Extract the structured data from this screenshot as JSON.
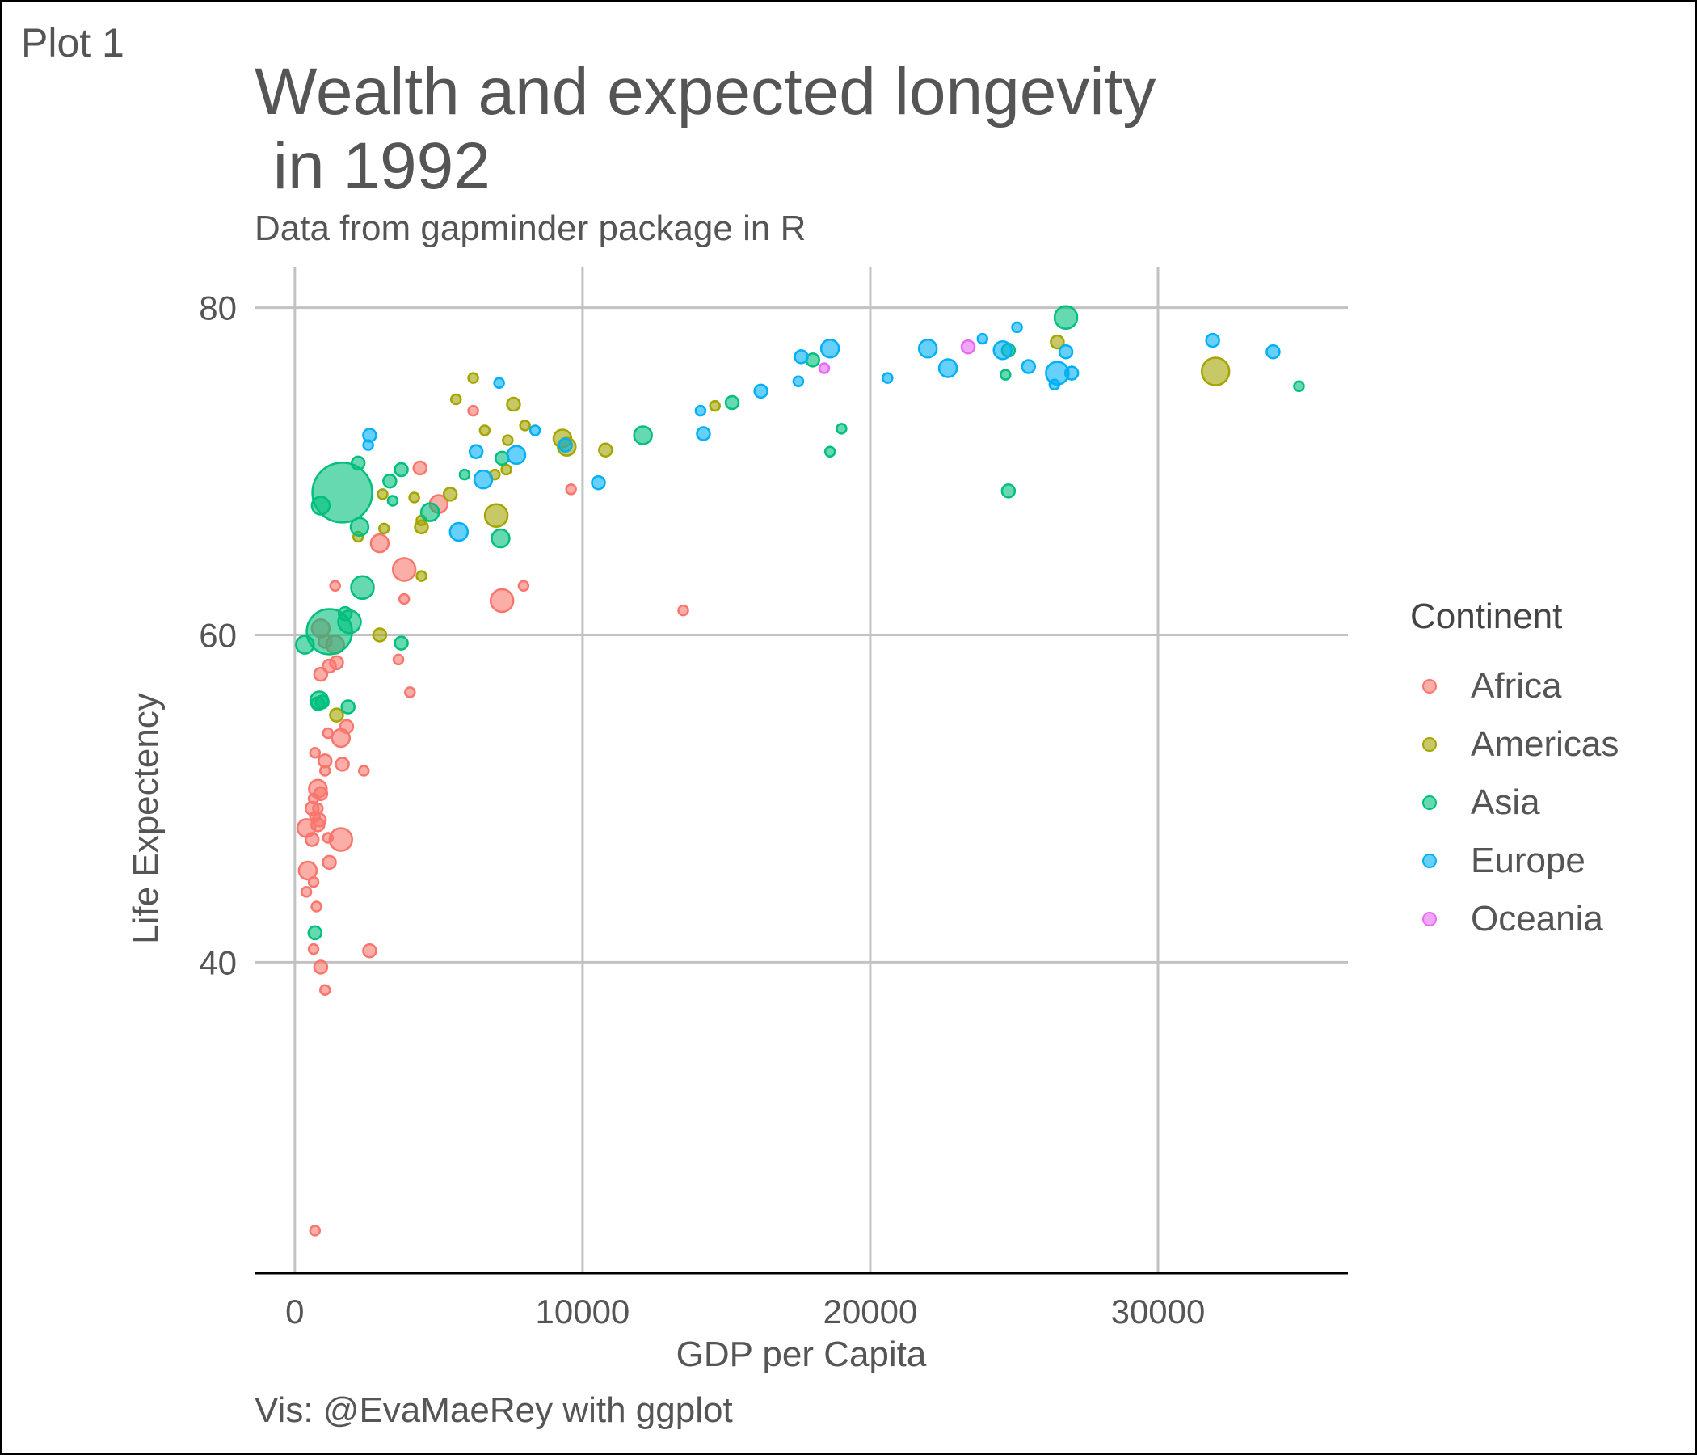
{
  "tag": "Plot 1",
  "title": "Wealth and expected longevity\n in 1992",
  "subtitle": "Data from gapminder package in R",
  "caption": "Vis: @EvaMaeRey with ggplot",
  "legend": {
    "title": "Continent",
    "items": [
      {
        "label": "Africa",
        "color": "#F8766D"
      },
      {
        "label": "Americas",
        "color": "#A3A500"
      },
      {
        "label": "Asia",
        "color": "#00BF7D"
      },
      {
        "label": "Europe",
        "color": "#00B0F6"
      },
      {
        "label": "Oceania",
        "color": "#E76BF3"
      }
    ]
  },
  "chart_data": {
    "type": "scatter",
    "title": "Wealth and expected longevity\n in 1992",
    "subtitle": "Data from gapminder package in R",
    "xlabel": "GDP per Capita",
    "ylabel": "Life Expectency",
    "xlim": [
      -1400,
      36600
    ],
    "ylim": [
      21,
      82.5
    ],
    "x_ticks": [
      0,
      10000,
      20000,
      30000
    ],
    "x_tick_labels": [
      "0",
      "10000",
      "20000",
      "30000"
    ],
    "y_ticks": [
      40,
      60,
      80
    ],
    "y_tick_labels": [
      "40",
      "60",
      "80"
    ],
    "grid": true,
    "legend_position": "right",
    "size_encoding": "population",
    "series": [
      {
        "name": "Africa",
        "color": "#F8766D",
        "points": [
          [
            6200,
            73.7,
            1
          ],
          [
            4350,
            70.2,
            2
          ],
          [
            5000,
            68.0,
            3
          ],
          [
            2950,
            65.6,
            3
          ],
          [
            3800,
            64.0,
            4
          ],
          [
            3800,
            62.2,
            1
          ],
          [
            7200,
            62.1,
            4
          ],
          [
            7950,
            63.0,
            1
          ],
          [
            1400,
            63.0,
            1
          ],
          [
            13500,
            61.5,
            1
          ],
          [
            9600,
            68.9,
            1
          ],
          [
            900,
            60.4,
            3
          ],
          [
            1050,
            59.6,
            2
          ],
          [
            1400,
            59.4,
            3
          ],
          [
            1200,
            58.1,
            2
          ],
          [
            1450,
            58.3,
            2
          ],
          [
            900,
            57.6,
            2
          ],
          [
            3600,
            58.5,
            1
          ],
          [
            4000,
            56.5,
            1
          ],
          [
            1150,
            54.0,
            1
          ],
          [
            1600,
            53.7,
            3
          ],
          [
            1800,
            54.4,
            2
          ],
          [
            700,
            52.8,
            1
          ],
          [
            1050,
            52.3,
            2
          ],
          [
            1050,
            51.7,
            1
          ],
          [
            1650,
            52.1,
            2
          ],
          [
            2400,
            51.7,
            1
          ],
          [
            800,
            50.6,
            3
          ],
          [
            900,
            50.3,
            2
          ],
          [
            650,
            50.0,
            1
          ],
          [
            600,
            49.4,
            2
          ],
          [
            800,
            49.4,
            1
          ],
          [
            850,
            48.7,
            2
          ],
          [
            700,
            48.9,
            1
          ],
          [
            800,
            48.4,
            2
          ],
          [
            400,
            48.2,
            3
          ],
          [
            600,
            47.5,
            2
          ],
          [
            1150,
            47.6,
            1
          ],
          [
            1600,
            47.5,
            4
          ],
          [
            1200,
            46.1,
            2
          ],
          [
            450,
            45.6,
            3
          ],
          [
            650,
            44.9,
            1
          ],
          [
            400,
            44.3,
            1
          ],
          [
            750,
            43.4,
            1
          ],
          [
            650,
            40.8,
            1
          ],
          [
            900,
            39.7,
            2
          ],
          [
            1050,
            38.3,
            1
          ],
          [
            2600,
            40.7,
            2
          ],
          [
            700,
            23.6,
            1
          ]
        ]
      },
      {
        "name": "Americas",
        "color": "#A3A500",
        "points": [
          [
            6200,
            75.7,
            1
          ],
          [
            5600,
            74.4,
            1
          ],
          [
            7600,
            74.1,
            2
          ],
          [
            8000,
            72.8,
            1
          ],
          [
            6600,
            72.5,
            1
          ],
          [
            7400,
            71.9,
            1
          ],
          [
            9300,
            72.0,
            3
          ],
          [
            9450,
            71.5,
            3
          ],
          [
            10800,
            71.3,
            2
          ],
          [
            6950,
            69.8,
            1
          ],
          [
            7350,
            70.1,
            1
          ],
          [
            3050,
            68.6,
            1
          ],
          [
            4150,
            68.4,
            1
          ],
          [
            5400,
            68.6,
            2
          ],
          [
            7000,
            67.3,
            4
          ],
          [
            4400,
            67.0,
            1
          ],
          [
            4400,
            66.6,
            2
          ],
          [
            3100,
            66.5,
            1
          ],
          [
            2200,
            66.0,
            1
          ],
          [
            4400,
            63.6,
            1
          ],
          [
            2950,
            60.0,
            2
          ],
          [
            1450,
            55.1,
            2
          ],
          [
            14600,
            74.0,
            1
          ],
          [
            26500,
            77.9,
            2
          ],
          [
            32000,
            76.1,
            5
          ]
        ]
      },
      {
        "name": "Asia",
        "color": "#00BF7D",
        "points": [
          [
            1650,
            68.7,
            9
          ],
          [
            900,
            67.9,
            3
          ],
          [
            2200,
            70.5,
            2
          ],
          [
            3700,
            70.1,
            2
          ],
          [
            3300,
            69.4,
            2
          ],
          [
            3400,
            68.2,
            1
          ],
          [
            2250,
            66.6,
            3
          ],
          [
            4700,
            67.5,
            3
          ],
          [
            2350,
            62.9,
            4
          ],
          [
            1200,
            60.2,
            8
          ],
          [
            1900,
            60.8,
            4
          ],
          [
            1750,
            61.3,
            2
          ],
          [
            350,
            59.4,
            3
          ],
          [
            3700,
            59.5,
            2
          ],
          [
            850,
            56.0,
            3
          ],
          [
            800,
            55.8,
            2
          ],
          [
            950,
            55.9,
            2
          ],
          [
            1850,
            55.6,
            2
          ],
          [
            700,
            41.8,
            2
          ],
          [
            5900,
            69.8,
            1
          ],
          [
            7200,
            70.8,
            2
          ],
          [
            7150,
            65.9,
            3
          ],
          [
            12100,
            72.2,
            3
          ],
          [
            15200,
            74.2,
            2
          ],
          [
            18000,
            76.8,
            2
          ],
          [
            18600,
            71.2,
            1
          ],
          [
            19000,
            72.6,
            1
          ],
          [
            24700,
            75.9,
            1
          ],
          [
            24800,
            68.8,
            2
          ],
          [
            24800,
            77.4,
            2
          ],
          [
            26800,
            79.4,
            4
          ],
          [
            34900,
            75.2,
            1
          ]
        ]
      },
      {
        "name": "Europe",
        "color": "#00B0F6",
        "points": [
          [
            7100,
            75.4,
            1
          ],
          [
            2600,
            72.2,
            2
          ],
          [
            2550,
            71.6,
            1
          ],
          [
            8350,
            72.5,
            1
          ],
          [
            6300,
            71.2,
            2
          ],
          [
            7700,
            71.0,
            3
          ],
          [
            9400,
            71.6,
            2
          ],
          [
            6550,
            69.5,
            3
          ],
          [
            5700,
            66.3,
            3
          ],
          [
            10550,
            69.3,
            2
          ],
          [
            14200,
            72.3,
            2
          ],
          [
            14100,
            73.7,
            1
          ],
          [
            16200,
            74.9,
            2
          ],
          [
            17500,
            75.5,
            1
          ],
          [
            17600,
            77.0,
            2
          ],
          [
            18600,
            77.5,
            3
          ],
          [
            20600,
            75.7,
            1
          ],
          [
            22000,
            77.5,
            3
          ],
          [
            22700,
            76.3,
            3
          ],
          [
            23900,
            78.1,
            1
          ],
          [
            24600,
            77.4,
            3
          ],
          [
            25100,
            78.8,
            1
          ],
          [
            25500,
            76.4,
            2
          ],
          [
            26400,
            75.3,
            1
          ],
          [
            26500,
            76.0,
            4
          ],
          [
            26800,
            77.3,
            2
          ],
          [
            27000,
            76.0,
            2
          ],
          [
            31900,
            78.0,
            2
          ],
          [
            34000,
            77.3,
            2
          ]
        ]
      },
      {
        "name": "Oceania",
        "color": "#E76BF3",
        "points": [
          [
            18400,
            76.3,
            1
          ],
          [
            23400,
            77.6,
            2
          ]
        ]
      }
    ]
  }
}
